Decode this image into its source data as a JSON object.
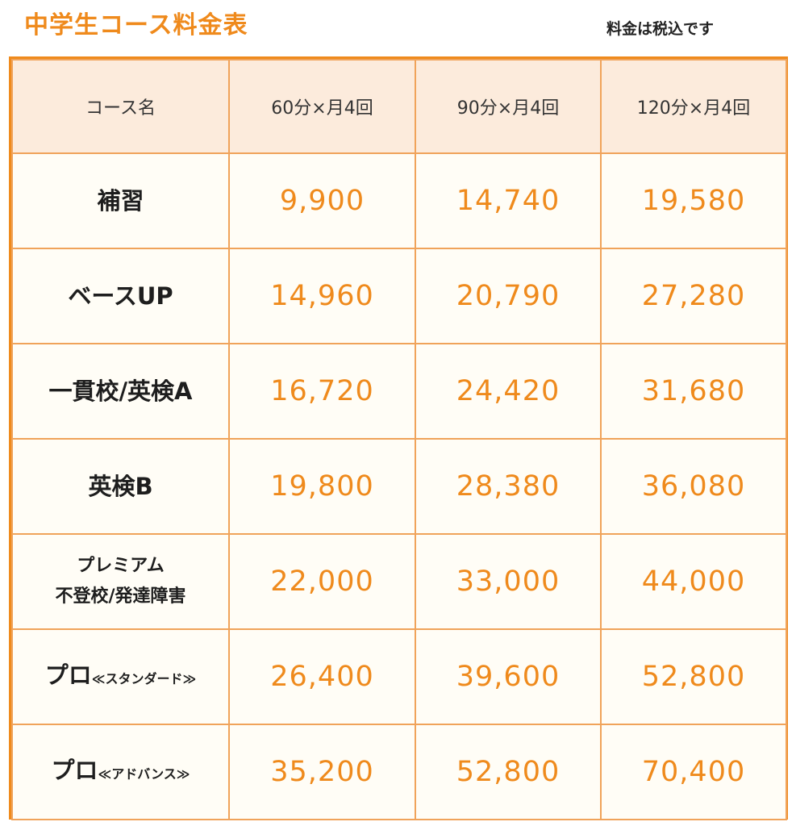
{
  "title": "中学生コース料金表",
  "tax_note": "料金は税込です",
  "colors": {
    "accent": "#ef8a1c",
    "header_bg": "#fcebdc",
    "cell_bg": "#fffdf6",
    "border": "#f0a35a"
  },
  "table": {
    "headers": [
      "コース名",
      "60分×月4回",
      "90分×月4回",
      "120分×月4回"
    ],
    "rows": [
      {
        "name": "補習",
        "name_sub": "",
        "prices": [
          "9,900",
          "14,740",
          "19,580"
        ]
      },
      {
        "name": "ベースUP",
        "name_sub": "",
        "prices": [
          "14,960",
          "20,790",
          "27,280"
        ]
      },
      {
        "name": "一貫校/英検A",
        "name_sub": "",
        "prices": [
          "16,720",
          "24,420",
          "31,680"
        ]
      },
      {
        "name": "英検B",
        "name_sub": "",
        "prices": [
          "19,800",
          "28,380",
          "36,080"
        ]
      },
      {
        "name_line1": "プレミアム",
        "name_line2": "不登校/発達障害",
        "prices": [
          "22,000",
          "33,000",
          "44,000"
        ]
      },
      {
        "name": "プロ",
        "name_sub": "≪スタンダード≫",
        "prices": [
          "26,400",
          "39,600",
          "52,800"
        ]
      },
      {
        "name": "プロ",
        "name_sub": "≪アドバンス≫",
        "prices": [
          "35,200",
          "52,800",
          "70,400"
        ]
      }
    ]
  }
}
